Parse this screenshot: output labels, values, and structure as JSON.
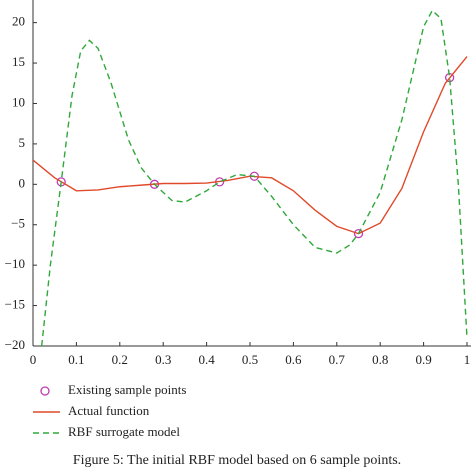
{
  "chart_data": {
    "type": "line",
    "caption": "Figure 5: The initial RBF model based on 6 sample points.",
    "xlim": [
      0,
      1
    ],
    "ylim": [
      -20,
      22.8
    ],
    "xticks": [
      0,
      0.1,
      0.2,
      0.3,
      0.4,
      0.5,
      0.6,
      0.7,
      0.8,
      0.9,
      1
    ],
    "yticks": [
      {
        "value": -20,
        "label": "−20"
      },
      {
        "value": -15,
        "label": "−15"
      },
      {
        "value": -10,
        "label": "−10"
      },
      {
        "value": -5,
        "label": "−5"
      },
      0,
      5,
      10,
      15,
      20
    ],
    "series": [
      {
        "name": "Existing sample points",
        "color": "#c03cb4",
        "style": "markers",
        "x": [
          0.065,
          0.28,
          0.43,
          0.51,
          0.75,
          0.96
        ],
        "values": [
          0.3,
          0,
          0.3,
          1.0,
          -6.1,
          13.2
        ]
      },
      {
        "name": "Actual function",
        "color": "#e04a2a",
        "style": "solid",
        "x": [
          0,
          0.05,
          0.1,
          0.15,
          0.2,
          0.25,
          0.3,
          0.35,
          0.4,
          0.45,
          0.5,
          0.55,
          0.6,
          0.65,
          0.7,
          0.75,
          0.8,
          0.85,
          0.9,
          0.95,
          1
        ],
        "values": [
          3,
          0.8,
          -0.8,
          -0.7,
          -0.3,
          -0.1,
          0.1,
          0.1,
          0.15,
          0.5,
          1.0,
          0.8,
          -0.8,
          -3.2,
          -5.2,
          -6.1,
          -4.8,
          -0.5,
          6.5,
          12.5,
          15.8
        ]
      },
      {
        "name": "RBF surrogate model",
        "color": "#2fa83a",
        "style": "dashed",
        "x": [
          0.02,
          0.04,
          0.065,
          0.09,
          0.11,
          0.13,
          0.15,
          0.18,
          0.22,
          0.25,
          0.28,
          0.32,
          0.35,
          0.4,
          0.43,
          0.47,
          0.51,
          0.55,
          0.6,
          0.65,
          0.7,
          0.73,
          0.75,
          0.8,
          0.85,
          0.9,
          0.92,
          0.94,
          0.96,
          0.98,
          1
        ],
        "values": [
          -20,
          -10,
          0.3,
          11,
          16.5,
          17.8,
          16.8,
          12.5,
          5.5,
          2,
          0,
          -2,
          -2.2,
          -0.8,
          0.3,
          1.2,
          1.0,
          -1.5,
          -5,
          -7.8,
          -8.5,
          -7.5,
          -6.1,
          -1,
          8,
          19.5,
          21.5,
          20.5,
          13.2,
          0,
          -19
        ]
      }
    ]
  }
}
